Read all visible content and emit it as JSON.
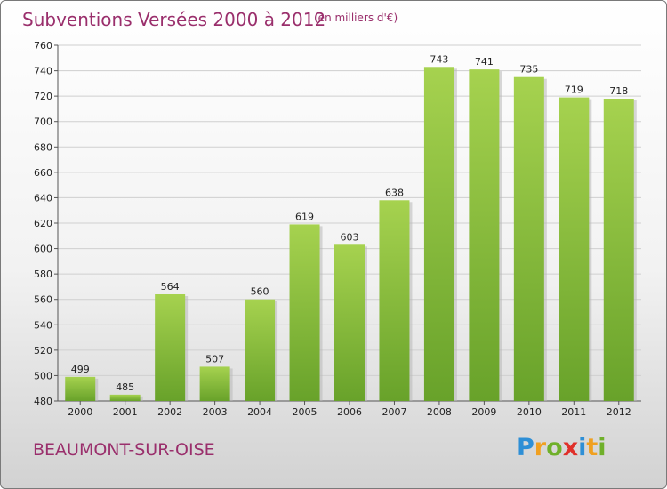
{
  "header": {
    "title": "Subventions Versées 2000 à 2012",
    "subtitle": "(en milliers d'€)"
  },
  "footer": {
    "city": "BEAUMONT-SUR-OISE",
    "brand_letters": [
      {
        "ch": "P",
        "color": "#2e8fd6"
      },
      {
        "ch": "r",
        "color": "#f0a020"
      },
      {
        "ch": "o",
        "color": "#6fb02a"
      },
      {
        "ch": "x",
        "color": "#e0302a"
      },
      {
        "ch": "i",
        "color": "#2e8fd6"
      },
      {
        "ch": "t",
        "color": "#f0a020"
      },
      {
        "ch": "i",
        "color": "#6fb02a"
      }
    ]
  },
  "colors": {
    "bar_light": "#a6d24f",
    "bar_dark": "#68a22a",
    "title": "#9a2f6c",
    "grid": "#cfcfcf"
  },
  "chart_data": {
    "type": "bar",
    "title": "Subventions Versées 2000 à 2012",
    "subtitle": "(en milliers d'€)",
    "categories": [
      "2000",
      "2001",
      "2002",
      "2003",
      "2004",
      "2005",
      "2006",
      "2007",
      "2008",
      "2009",
      "2010",
      "2011",
      "2012"
    ],
    "values": [
      499,
      485,
      564,
      507,
      560,
      619,
      603,
      638,
      743,
      741,
      735,
      719,
      718
    ],
    "ylim": [
      480,
      760
    ],
    "yticks": [
      480,
      500,
      520,
      540,
      560,
      580,
      600,
      620,
      640,
      660,
      680,
      700,
      720,
      740,
      760
    ],
    "grid": true,
    "xlabel": "",
    "ylabel": ""
  }
}
